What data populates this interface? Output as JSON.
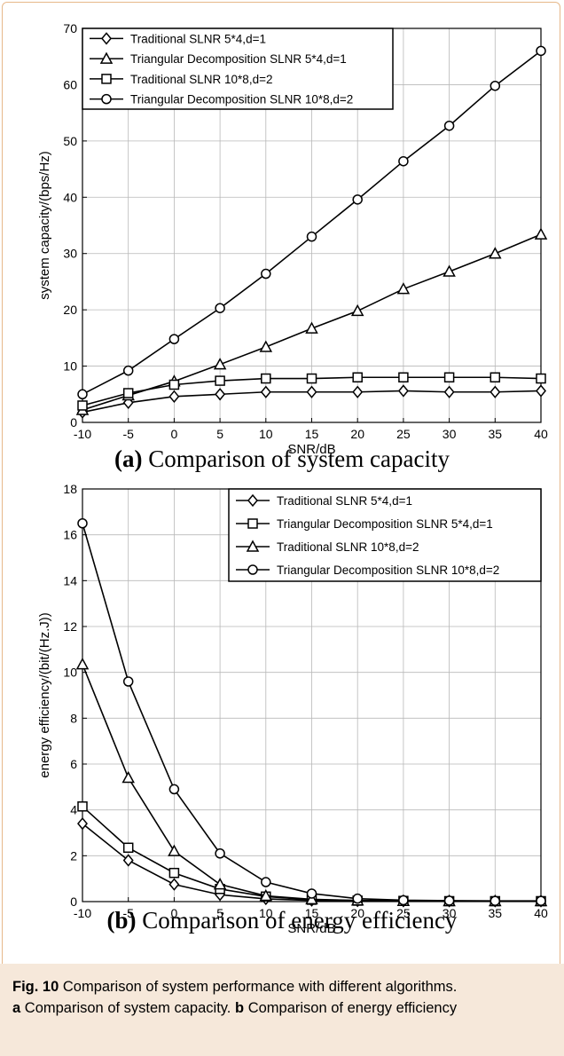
{
  "figure_caption": {
    "label": "Fig. 10",
    "text": "Comparison of system performance with different algorithms.",
    "part_a_tag": "a",
    "part_a_text": "Comparison of system capacity.",
    "part_b_tag": "b",
    "part_b_text": "Comparison of energy efficiency"
  },
  "chart_data": [
    {
      "type": "line",
      "subcaption_tag": "(a)",
      "subcaption_text": "Comparison of system capacity",
      "xlabel": "SNR/dB",
      "ylabel": "system capacity/(bps/Hz)",
      "xlim": [
        -10,
        40
      ],
      "ylim": [
        0,
        70
      ],
      "xticks": [
        -10,
        -5,
        0,
        5,
        10,
        15,
        20,
        25,
        30,
        35,
        40
      ],
      "yticks": [
        0,
        10,
        20,
        30,
        40,
        50,
        60,
        70
      ],
      "grid": true,
      "legend_position": "top-left",
      "x": [
        -10,
        -5,
        0,
        5,
        10,
        15,
        20,
        25,
        30,
        35,
        40
      ],
      "series": [
        {
          "name": "Traditional SLNR  5*4,d=1",
          "marker": "diamond",
          "values": [
            1.8,
            3.5,
            4.6,
            5.0,
            5.4,
            5.4,
            5.4,
            5.6,
            5.4,
            5.4,
            5.6
          ]
        },
        {
          "name": "Triangular Decomposition SLNR  5*4,d=1",
          "marker": "triangle",
          "values": [
            2.2,
            4.8,
            7.3,
            10.3,
            13.4,
            16.7,
            19.8,
            23.7,
            26.8,
            30.0,
            33.4
          ]
        },
        {
          "name": "Traditional SLNR  10*8,d=2",
          "marker": "square",
          "values": [
            3.0,
            5.2,
            6.7,
            7.4,
            7.8,
            7.8,
            8.0,
            8.0,
            8.0,
            8.0,
            7.8
          ]
        },
        {
          "name": "Triangular Decomposition SLNR  10*8,d=2",
          "marker": "circle",
          "values": [
            5.0,
            9.2,
            14.8,
            20.3,
            26.4,
            33.0,
            39.6,
            46.4,
            52.7,
            59.8,
            66.0
          ]
        }
      ]
    },
    {
      "type": "line",
      "subcaption_tag": "(b)",
      "subcaption_text": "Comparison of energy efficiency",
      "xlabel": "SNR/dB",
      "ylabel": "energy efficiency/(bit/(Hz.J))",
      "xlim": [
        -10,
        40
      ],
      "ylim": [
        0,
        18
      ],
      "xticks": [
        -10,
        -5,
        0,
        5,
        10,
        15,
        20,
        25,
        30,
        35,
        40
      ],
      "yticks": [
        0,
        2,
        4,
        6,
        8,
        10,
        12,
        14,
        16,
        18
      ],
      "grid": true,
      "legend_position": "top-right",
      "x": [
        -10,
        -5,
        0,
        5,
        10,
        15,
        20,
        25,
        30,
        35,
        40
      ],
      "series": [
        {
          "name": "Traditional SLNR  5*4,d=1",
          "marker": "diamond",
          "values": [
            3.4,
            1.8,
            0.75,
            0.3,
            0.12,
            0.05,
            0.03,
            0.02,
            0.02,
            0.02,
            0.02
          ]
        },
        {
          "name": "Triangular Decomposition SLNR  5*4,d=1",
          "marker": "square",
          "values": [
            4.15,
            2.35,
            1.25,
            0.55,
            0.22,
            0.08,
            0.04,
            0.03,
            0.02,
            0.02,
            0.02
          ]
        },
        {
          "name": "Traditional SLNR  10*8,d=2",
          "marker": "triangle",
          "values": [
            10.35,
            5.4,
            2.2,
            0.75,
            0.25,
            0.1,
            0.05,
            0.03,
            0.02,
            0.02,
            0.02
          ]
        },
        {
          "name": "Triangular Decomposition SLNR  10*8,d=2",
          "marker": "circle",
          "values": [
            16.5,
            9.6,
            4.9,
            2.1,
            0.85,
            0.35,
            0.13,
            0.06,
            0.04,
            0.03,
            0.03
          ]
        }
      ]
    }
  ]
}
